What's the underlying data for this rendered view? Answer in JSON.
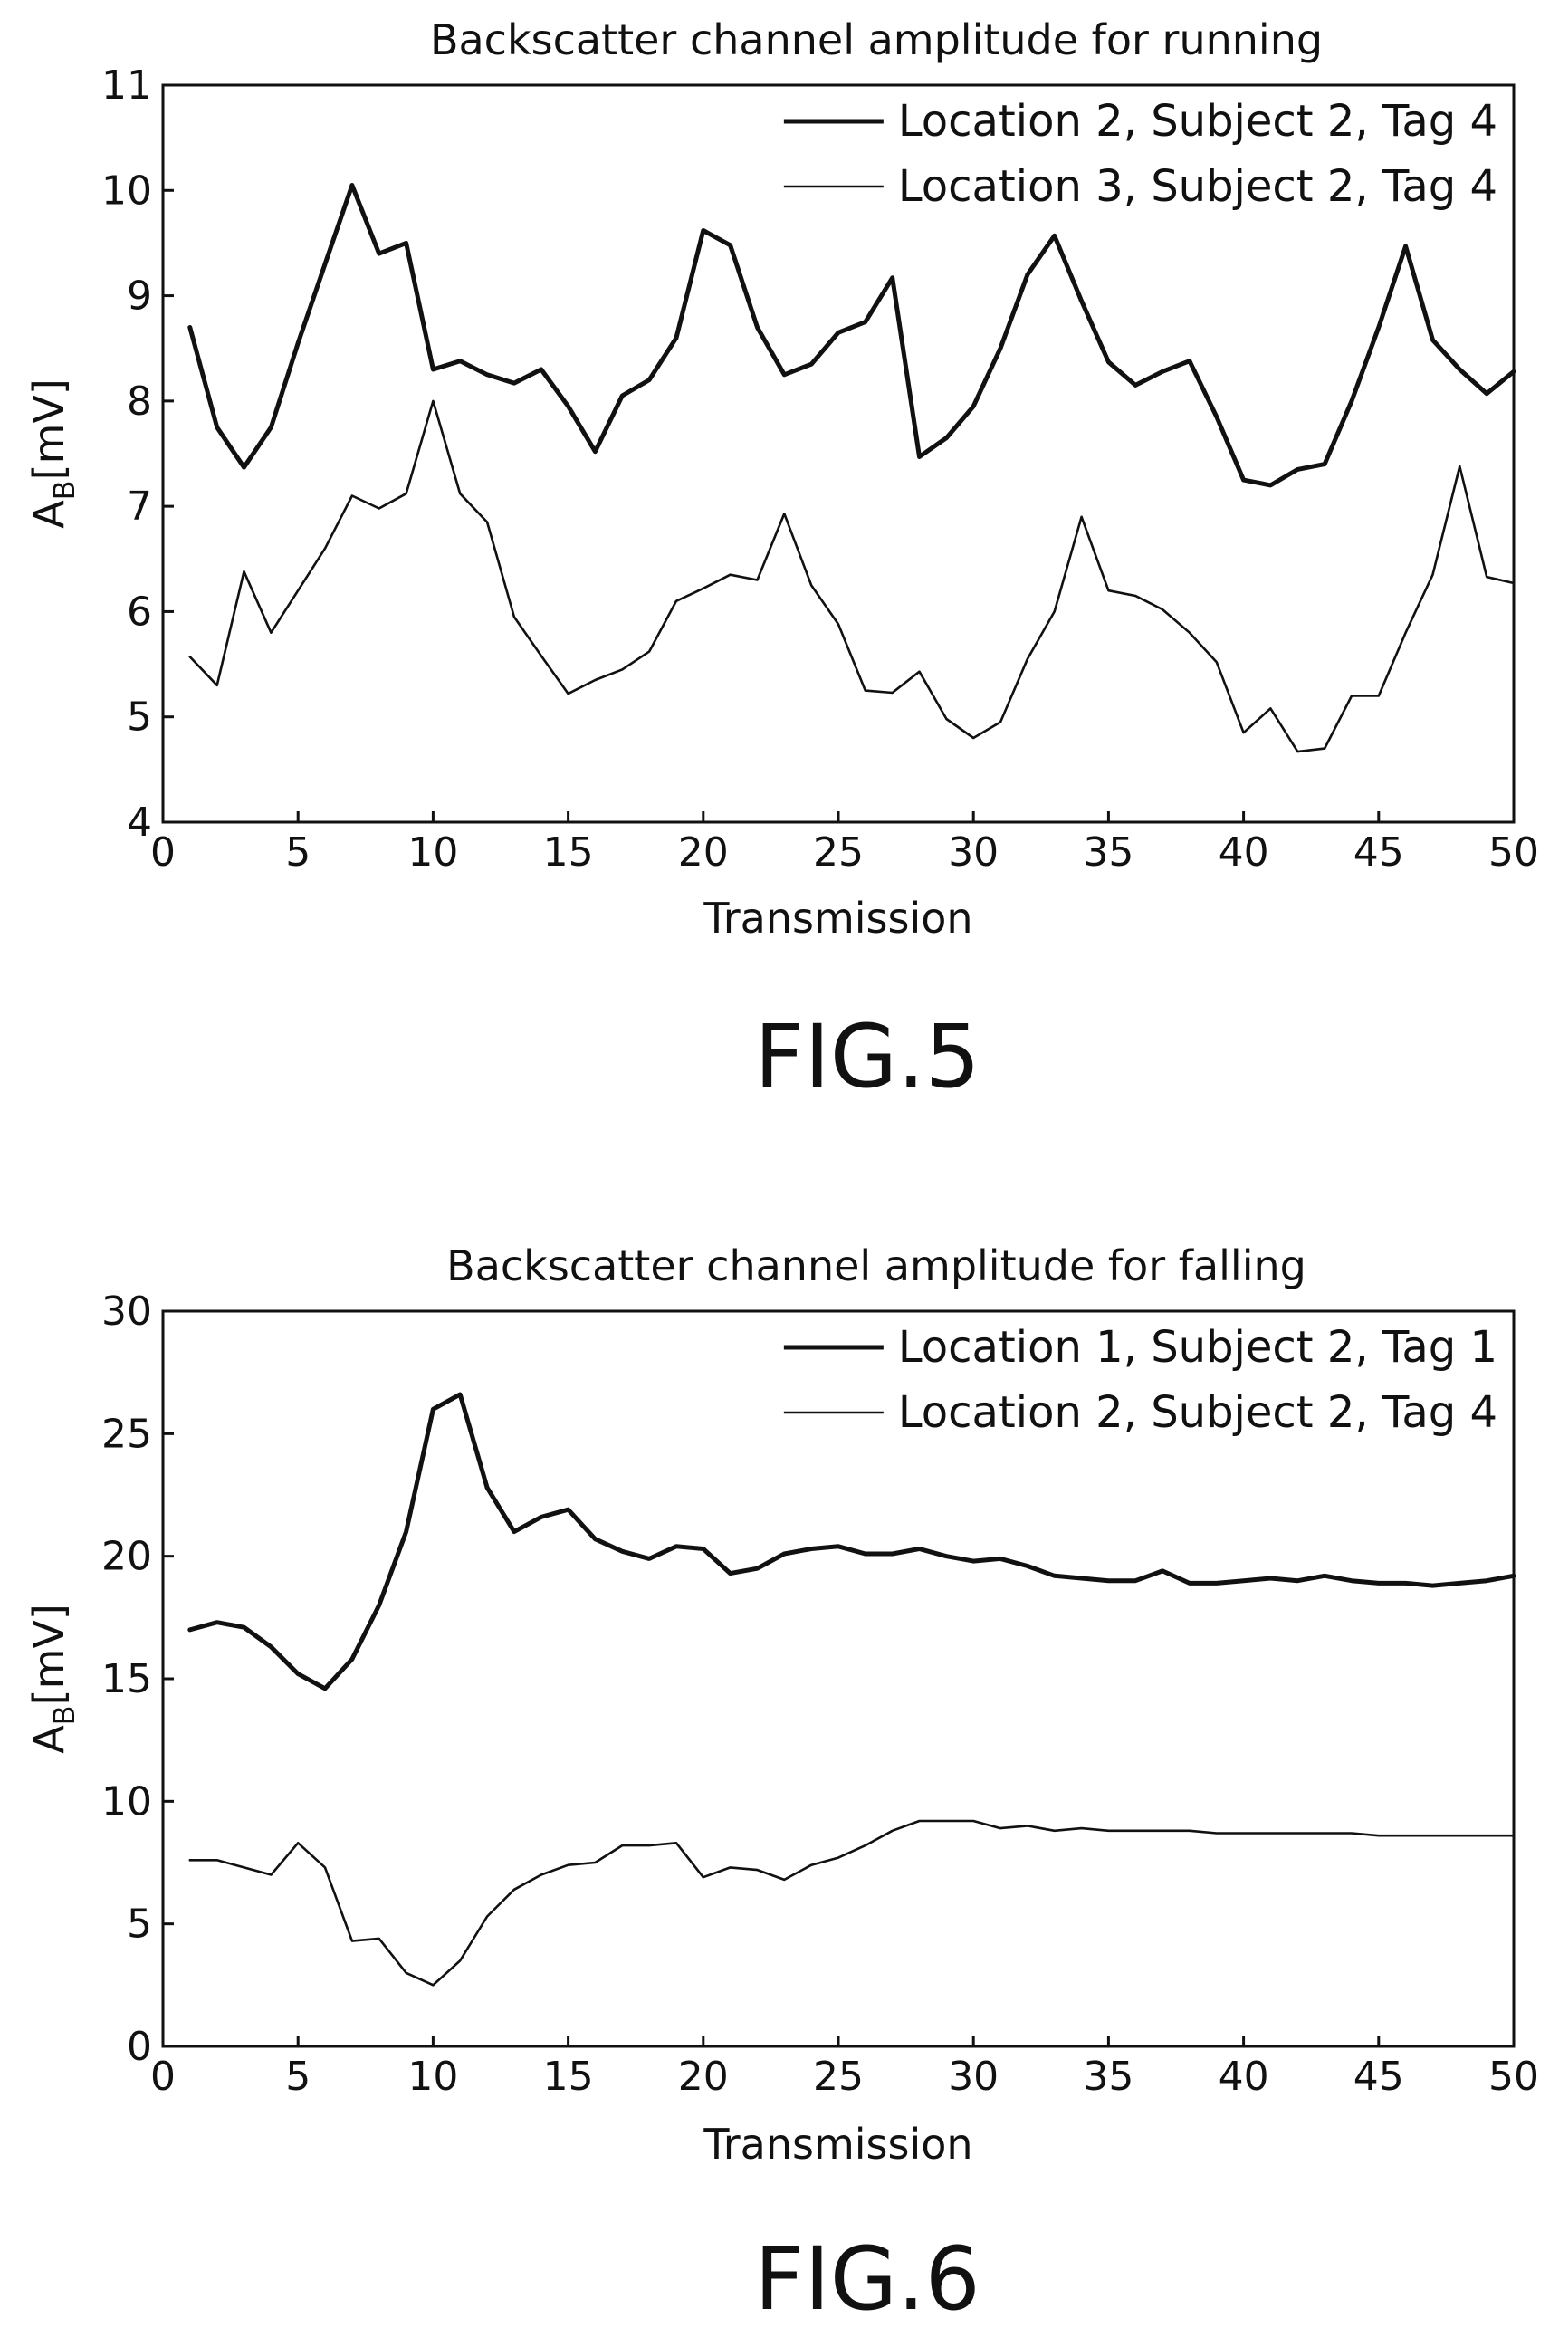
{
  "figures": [
    {
      "label": "FIG.5"
    },
    {
      "label": "FIG.6"
    }
  ],
  "chart_data": [
    {
      "type": "line",
      "title": "Backscatter channel amplitude for running",
      "xlabel": "Transmission",
      "ylabel_main": "A",
      "ylabel_sub": "B",
      "ylabel_unit": "[mV]",
      "xlim": [
        0,
        50
      ],
      "ylim": [
        4,
        11
      ],
      "xticks": [
        0,
        5,
        10,
        15,
        20,
        25,
        30,
        35,
        40,
        45,
        50
      ],
      "yticks": [
        4,
        5,
        6,
        7,
        8,
        9,
        10,
        11
      ],
      "grid": false,
      "legend_position": "top-right",
      "x": [
        1,
        2,
        3,
        4,
        5,
        6,
        7,
        8,
        9,
        10,
        11,
        12,
        13,
        14,
        15,
        16,
        17,
        18,
        19,
        20,
        21,
        22,
        23,
        24,
        25,
        26,
        27,
        28,
        29,
        30,
        31,
        32,
        33,
        34,
        35,
        36,
        37,
        38,
        39,
        40,
        41,
        42,
        43,
        44,
        45,
        46,
        47,
        48,
        49,
        50
      ],
      "series": [
        {
          "name": "Location 2, Subject 2, Tag 4",
          "color": "#111111",
          "width": 5,
          "values": [
            8.7,
            7.75,
            7.37,
            7.75,
            8.55,
            9.3,
            10.05,
            9.4,
            9.5,
            8.3,
            8.38,
            8.25,
            8.17,
            8.3,
            7.95,
            7.52,
            8.05,
            8.2,
            8.6,
            9.62,
            9.48,
            8.7,
            8.25,
            8.35,
            8.65,
            8.75,
            9.17,
            7.47,
            7.65,
            7.95,
            8.5,
            9.2,
            9.57,
            8.95,
            8.37,
            8.15,
            8.28,
            8.38,
            7.85,
            7.25,
            7.2,
            7.35,
            7.4,
            8.0,
            8.7,
            9.47,
            8.58,
            8.3,
            8.07,
            8.28
          ]
        },
        {
          "name": "Location 3, Subject 2, Tag 4",
          "color": "#111111",
          "width": 2.6,
          "values": [
            5.57,
            5.3,
            6.38,
            5.8,
            6.2,
            6.6,
            7.1,
            6.98,
            7.12,
            8.0,
            7.12,
            6.85,
            5.95,
            5.58,
            5.22,
            5.35,
            5.45,
            5.62,
            6.1,
            6.22,
            6.35,
            6.3,
            6.93,
            6.25,
            5.88,
            5.25,
            5.23,
            5.43,
            4.98,
            4.8,
            4.95,
            5.55,
            6.0,
            6.9,
            6.2,
            6.15,
            6.02,
            5.8,
            5.52,
            4.85,
            5.08,
            4.67,
            4.7,
            5.2,
            5.2,
            5.8,
            6.35,
            7.38,
            6.33,
            6.27
          ]
        }
      ]
    },
    {
      "type": "line",
      "title": "Backscatter channel amplitude for falling",
      "xlabel": "Transmission",
      "ylabel_main": "A",
      "ylabel_sub": "B",
      "ylabel_unit": "[mV]",
      "xlim": [
        0,
        50
      ],
      "ylim": [
        0,
        30
      ],
      "xticks": [
        0,
        5,
        10,
        15,
        20,
        25,
        30,
        35,
        40,
        45,
        50
      ],
      "yticks": [
        0,
        5,
        10,
        15,
        20,
        25,
        30
      ],
      "grid": false,
      "legend_position": "top-right",
      "x": [
        1,
        2,
        3,
        4,
        5,
        6,
        7,
        8,
        9,
        10,
        11,
        12,
        13,
        14,
        15,
        16,
        17,
        18,
        19,
        20,
        21,
        22,
        23,
        24,
        25,
        26,
        27,
        28,
        29,
        30,
        31,
        32,
        33,
        34,
        35,
        36,
        37,
        38,
        39,
        40,
        41,
        42,
        43,
        44,
        45,
        46,
        47,
        48,
        49,
        50
      ],
      "series": [
        {
          "name": "Location 1, Subject 2, Tag 1",
          "color": "#111111",
          "width": 5,
          "values": [
            17.0,
            17.3,
            17.1,
            16.3,
            15.2,
            14.6,
            15.8,
            18.0,
            21.0,
            26.0,
            26.6,
            22.8,
            21.0,
            21.6,
            21.9,
            20.7,
            20.2,
            19.9,
            20.4,
            20.3,
            19.3,
            19.5,
            20.1,
            20.3,
            20.4,
            20.1,
            20.1,
            20.3,
            20.0,
            19.8,
            19.9,
            19.6,
            19.2,
            19.1,
            19.0,
            19.0,
            19.4,
            18.9,
            18.9,
            19.0,
            19.1,
            19.0,
            19.2,
            19.0,
            18.9,
            18.9,
            18.8,
            18.9,
            19.0,
            19.2
          ]
        },
        {
          "name": "Location 2, Subject 2, Tag 4",
          "color": "#111111",
          "width": 2.6,
          "values": [
            7.6,
            7.6,
            7.3,
            7.0,
            8.3,
            7.3,
            4.3,
            4.4,
            3.0,
            2.5,
            3.5,
            5.3,
            6.4,
            7.0,
            7.4,
            7.5,
            8.2,
            8.2,
            8.3,
            6.9,
            7.3,
            7.2,
            6.8,
            7.4,
            7.7,
            8.2,
            8.8,
            9.2,
            9.2,
            9.2,
            8.9,
            9.0,
            8.8,
            8.9,
            8.8,
            8.8,
            8.8,
            8.8,
            8.7,
            8.7,
            8.7,
            8.7,
            8.7,
            8.7,
            8.6,
            8.6,
            8.6,
            8.6,
            8.6,
            8.6
          ]
        }
      ]
    }
  ]
}
